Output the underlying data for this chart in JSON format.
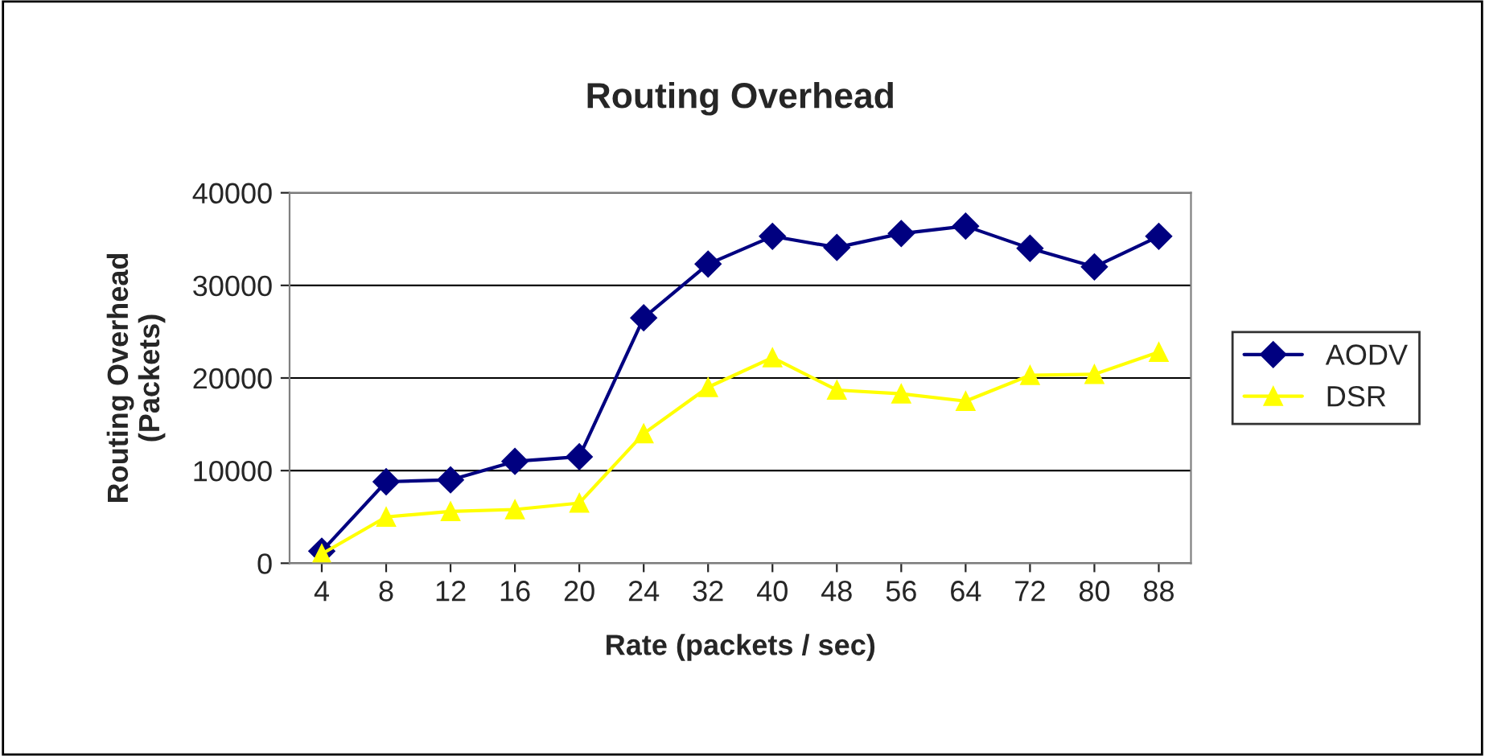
{
  "chart_data": {
    "type": "line",
    "title": "Routing Overhead",
    "xlabel": "Rate (packets / sec)",
    "ylabel": "Routing Overhead\n(Packets)",
    "categories": [
      "4",
      "8",
      "12",
      "16",
      "20",
      "24",
      "32",
      "40",
      "48",
      "56",
      "64",
      "72",
      "80",
      "88"
    ],
    "series": [
      {
        "name": "AODV",
        "color": "#000080",
        "marker": "diamond",
        "values": [
          1300,
          8800,
          9000,
          11000,
          11500,
          26500,
          32300,
          35300,
          34100,
          35600,
          36400,
          34000,
          32000,
          35300
        ]
      },
      {
        "name": "DSR",
        "color": "#ffff00",
        "marker": "triangle",
        "values": [
          1000,
          5000,
          5600,
          5800,
          6500,
          14000,
          19000,
          22200,
          18700,
          18300,
          17500,
          20300,
          20400,
          22800
        ]
      }
    ],
    "ylim": [
      0,
      40000
    ],
    "yticks": [
      0,
      10000,
      20000,
      30000,
      40000
    ],
    "grid": "y",
    "legend": "right",
    "line_style": "solid"
  }
}
